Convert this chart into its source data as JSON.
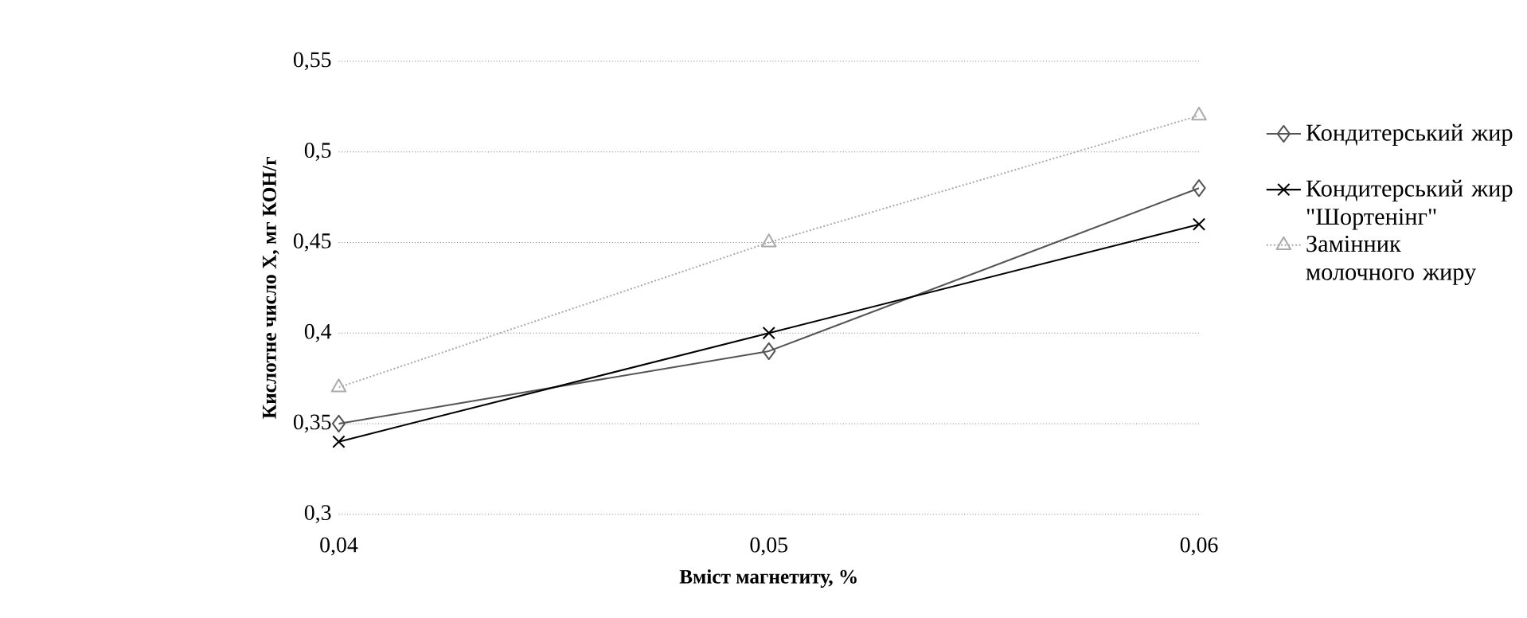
{
  "chart_data": {
    "type": "line",
    "xlabel": "Вміст магнетиту, %",
    "ylabel": "Кислотне число Х, мг КОН/г",
    "x": [
      0.04,
      0.05,
      0.06
    ],
    "series": [
      {
        "name": "Кондитерський жир",
        "color": "#555555",
        "marker": "diamond",
        "line_style": "solid",
        "values": [
          0.35,
          0.39,
          0.48
        ]
      },
      {
        "name": "Кондитерський жир \"Шортенінг\"",
        "color": "#000000",
        "marker": "cross",
        "line_style": "solid",
        "values": [
          0.34,
          0.4,
          0.46
        ]
      },
      {
        "name": "Замінник молочного жиру",
        "color": "#aaaaaa",
        "marker": "triangle",
        "line_style": "dotted",
        "values": [
          0.37,
          0.45,
          0.52
        ]
      }
    ],
    "xlim": [
      0.04,
      0.06
    ],
    "xticks": [
      {
        "value": 0.04,
        "label": "0,04"
      },
      {
        "value": 0.05,
        "label": "0,05"
      },
      {
        "value": 0.06,
        "label": "0,06"
      }
    ],
    "ylim": [
      0.3,
      0.55
    ],
    "yticks": [
      {
        "value": 0.3,
        "label": "0,3"
      },
      {
        "value": 0.35,
        "label": "0,35"
      },
      {
        "value": 0.4,
        "label": "0,4"
      },
      {
        "value": 0.45,
        "label": "0,45"
      },
      {
        "value": 0.5,
        "label": "0,5"
      },
      {
        "value": 0.55,
        "label": "0,55"
      }
    ],
    "grid": "y",
    "legend": "right"
  }
}
